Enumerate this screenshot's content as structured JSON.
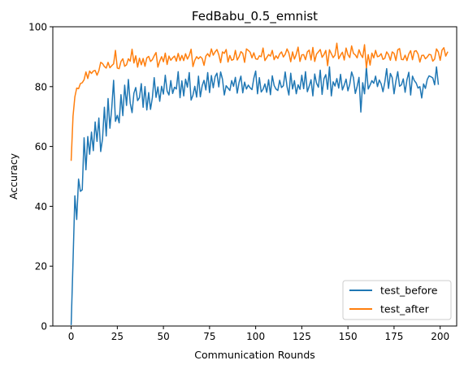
{
  "chart_data": {
    "type": "line",
    "title": "FedBabu_0.5_emnist",
    "xlabel": "Communication Rounds",
    "ylabel": "Accuracy",
    "xlim": [
      -9.95,
      208.95
    ],
    "ylim": [
      0,
      100
    ],
    "xticks": [
      0,
      25,
      50,
      75,
      100,
      125,
      150,
      175,
      200
    ],
    "yticks": [
      0,
      20,
      40,
      60,
      80,
      100
    ],
    "grid": false,
    "legend_position": "lower-right",
    "series": [
      {
        "name": "test_before",
        "color": "#1f77b4",
        "values": [
          0.5,
          21.5,
          43.5,
          35.6,
          49.1,
          45.0,
          45.5,
          62.9,
          52.2,
          63.3,
          57.4,
          64.8,
          58.6,
          68.2,
          61.7,
          69.5,
          58.3,
          62.6,
          73.1,
          63.5,
          76.0,
          66.1,
          72.9,
          82.1,
          68.4,
          70.4,
          67.9,
          77.3,
          70.3,
          80.5,
          73.7,
          82.4,
          74.5,
          71.3,
          77.8,
          79.7,
          75.3,
          76.3,
          81.0,
          73.1,
          80.0,
          72.2,
          78.0,
          72.4,
          76.3,
          83.0,
          76.4,
          79.9,
          75.1,
          80.1,
          77.5,
          83.8,
          78.5,
          77.2,
          82.0,
          77.7,
          79.8,
          79.2,
          85.0,
          76.3,
          81.9,
          76.9,
          82.5,
          79.8,
          84.7,
          75.5,
          77.1,
          80.1,
          76.5,
          83.5,
          76.6,
          80.3,
          82.1,
          78.9,
          84.7,
          78.0,
          83.7,
          79.6,
          83.3,
          84.5,
          79.9,
          84.9,
          82.5,
          77.2,
          80.3,
          79.5,
          78.7,
          82.0,
          80.1,
          83.1,
          77.8,
          81.4,
          83.5,
          77.9,
          81.5,
          79.2,
          80.5,
          79.6,
          79.0,
          82.8,
          85.2,
          77.6,
          83.0,
          78.2,
          79.1,
          80.9,
          78.1,
          82.3,
          77.3,
          83.6,
          80.4,
          79.2,
          78.7,
          82.1,
          79.7,
          80.3,
          84.9,
          80.0,
          77.2,
          84.5,
          79.2,
          82.0,
          77.6,
          80.6,
          79.1,
          83.8,
          79.3,
          85.0,
          78.3,
          80.1,
          82.3,
          76.9,
          84.2,
          81.1,
          79.8,
          85.5,
          77.4,
          82.6,
          84.0,
          79.1,
          86.6,
          76.9,
          81.6,
          80.2,
          82.7,
          79.5,
          84.1,
          78.9,
          80.5,
          82.5,
          78.6,
          80.8,
          84.9,
          83.0,
          77.7,
          80.1,
          83.1,
          71.5,
          81.3,
          77.6,
          86.6,
          79.2,
          80.5,
          82.0,
          81.1,
          83.5,
          80.0,
          82.2,
          80.9,
          78.3,
          81.5,
          86.0,
          79.4,
          84.4,
          83.0,
          77.6,
          81.8,
          85.0,
          80.1,
          80.6,
          82.6,
          78.1,
          82.3,
          84.8,
          77.2,
          83.5,
          82.0,
          81.2,
          79.5,
          80.0,
          76.2,
          80.9,
          79.4,
          82.4,
          83.6,
          83.3,
          82.9,
          80.6,
          86.6,
          80.8
        ]
      },
      {
        "name": "test_after",
        "color": "#ff7f0e",
        "values": [
          55.4,
          70.1,
          76.6,
          79.5,
          79.3,
          81.0,
          81.3,
          82.3,
          84.9,
          82.7,
          85.2,
          84.4,
          85.2,
          85.4,
          83.8,
          85.3,
          88.1,
          87.7,
          86.7,
          86.2,
          88.1,
          86.3,
          87.0,
          87.6,
          92.1,
          86.2,
          86.0,
          88.4,
          89.3,
          86.8,
          87.3,
          89.3,
          88.5,
          92.5,
          87.9,
          90.3,
          86.5,
          89.5,
          87.3,
          89.4,
          86.8,
          89.6,
          90.1,
          88.4,
          89.0,
          90.3,
          91.4,
          86.5,
          88.5,
          90.0,
          88.3,
          91.2,
          87.4,
          90.2,
          88.8,
          89.6,
          90.2,
          88.5,
          91.1,
          88.7,
          90.4,
          88.7,
          91.0,
          89.2,
          90.4,
          92.5,
          86.7,
          88.8,
          90.0,
          89.3,
          90.0,
          89.4,
          87.1,
          90.2,
          91.0,
          90.0,
          92.6,
          90.5,
          91.6,
          92.4,
          90.7,
          88.0,
          91.6,
          91.1,
          92.4,
          88.2,
          90.4,
          88.8,
          89.1,
          92.1,
          88.9,
          90.0,
          91.7,
          91.1,
          88.1,
          92.6,
          92.1,
          91.5,
          89.6,
          91.3,
          89.3,
          89.1,
          90.3,
          90.0,
          92.9,
          88.7,
          89.7,
          90.7,
          90.2,
          92.1,
          89.0,
          90.3,
          89.4,
          90.9,
          91.6,
          89.9,
          90.8,
          92.6,
          91.2,
          88.3,
          91.6,
          89.2,
          90.8,
          93.2,
          88.4,
          90.6,
          90.7,
          89.0,
          91.6,
          92.2,
          88.9,
          93.1,
          88.4,
          90.9,
          91.6,
          92.4,
          89.8,
          90.7,
          92.1,
          87.0,
          92.3,
          91.0,
          89.7,
          90.5,
          94.5,
          89.3,
          90.5,
          91.5,
          88.9,
          92.9,
          90.7,
          89.7,
          93.6,
          91.1,
          90.6,
          89.6,
          92.3,
          90.7,
          89.7,
          94.0,
          86.3,
          90.7,
          87.2,
          91.2,
          89.6,
          92.1,
          90.0,
          90.2,
          91.0,
          89.1,
          89.5,
          91.6,
          90.7,
          88.8,
          91.6,
          91.1,
          88.7,
          92.3,
          92.7,
          89.1,
          89.0,
          90.5,
          88.7,
          90.9,
          92.0,
          89.0,
          91.8,
          92.0,
          90.9,
          88.2,
          90.4,
          90.5,
          89.3,
          89.9,
          90.8,
          90.6,
          88.5,
          89.2,
          92.6,
          91.6,
          88.8,
          92.2,
          93.0,
          90.2,
          91.5
        ]
      }
    ]
  }
}
